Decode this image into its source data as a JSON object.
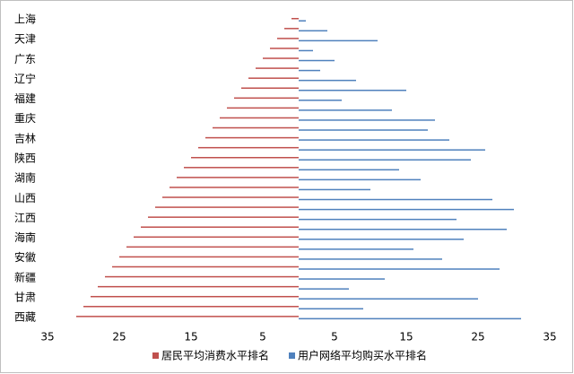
{
  "chart_data": {
    "type": "butterfly-bar",
    "categories": [
      "上海",
      null,
      "天津",
      null,
      "广东",
      null,
      "辽宁",
      null,
      "福建",
      null,
      "重庆",
      null,
      "吉林",
      null,
      "陕西",
      null,
      "湖南",
      null,
      "山西",
      null,
      "江西",
      null,
      "海南",
      null,
      "安徽",
      null,
      "新疆",
      null,
      "甘肃",
      null,
      "西藏"
    ],
    "series": [
      {
        "name": "居民平均消费水平排名",
        "color": "#c0504d",
        "side": "left",
        "values": [
          1,
          2,
          3,
          4,
          5,
          6,
          7,
          8,
          9,
          10,
          11,
          12,
          13,
          14,
          15,
          16,
          17,
          18,
          19,
          20,
          21,
          22,
          23,
          24,
          25,
          26,
          27,
          28,
          29,
          30,
          31
        ]
      },
      {
        "name": "用户网络平均购买水平排名",
        "color": "#4f81bd",
        "side": "right",
        "values": [
          1,
          4,
          11,
          2,
          5,
          3,
          8,
          15,
          6,
          13,
          19,
          18,
          21,
          26,
          24,
          14,
          17,
          10,
          27,
          30,
          22,
          29,
          23,
          16,
          20,
          28,
          12,
          7,
          25,
          9,
          31
        ]
      }
    ],
    "xlim": [
      0,
      35
    ],
    "left_xticks": [
      35,
      25,
      15,
      5
    ],
    "xticks": [
      5,
      15,
      25,
      35
    ],
    "legend": "bottom"
  }
}
